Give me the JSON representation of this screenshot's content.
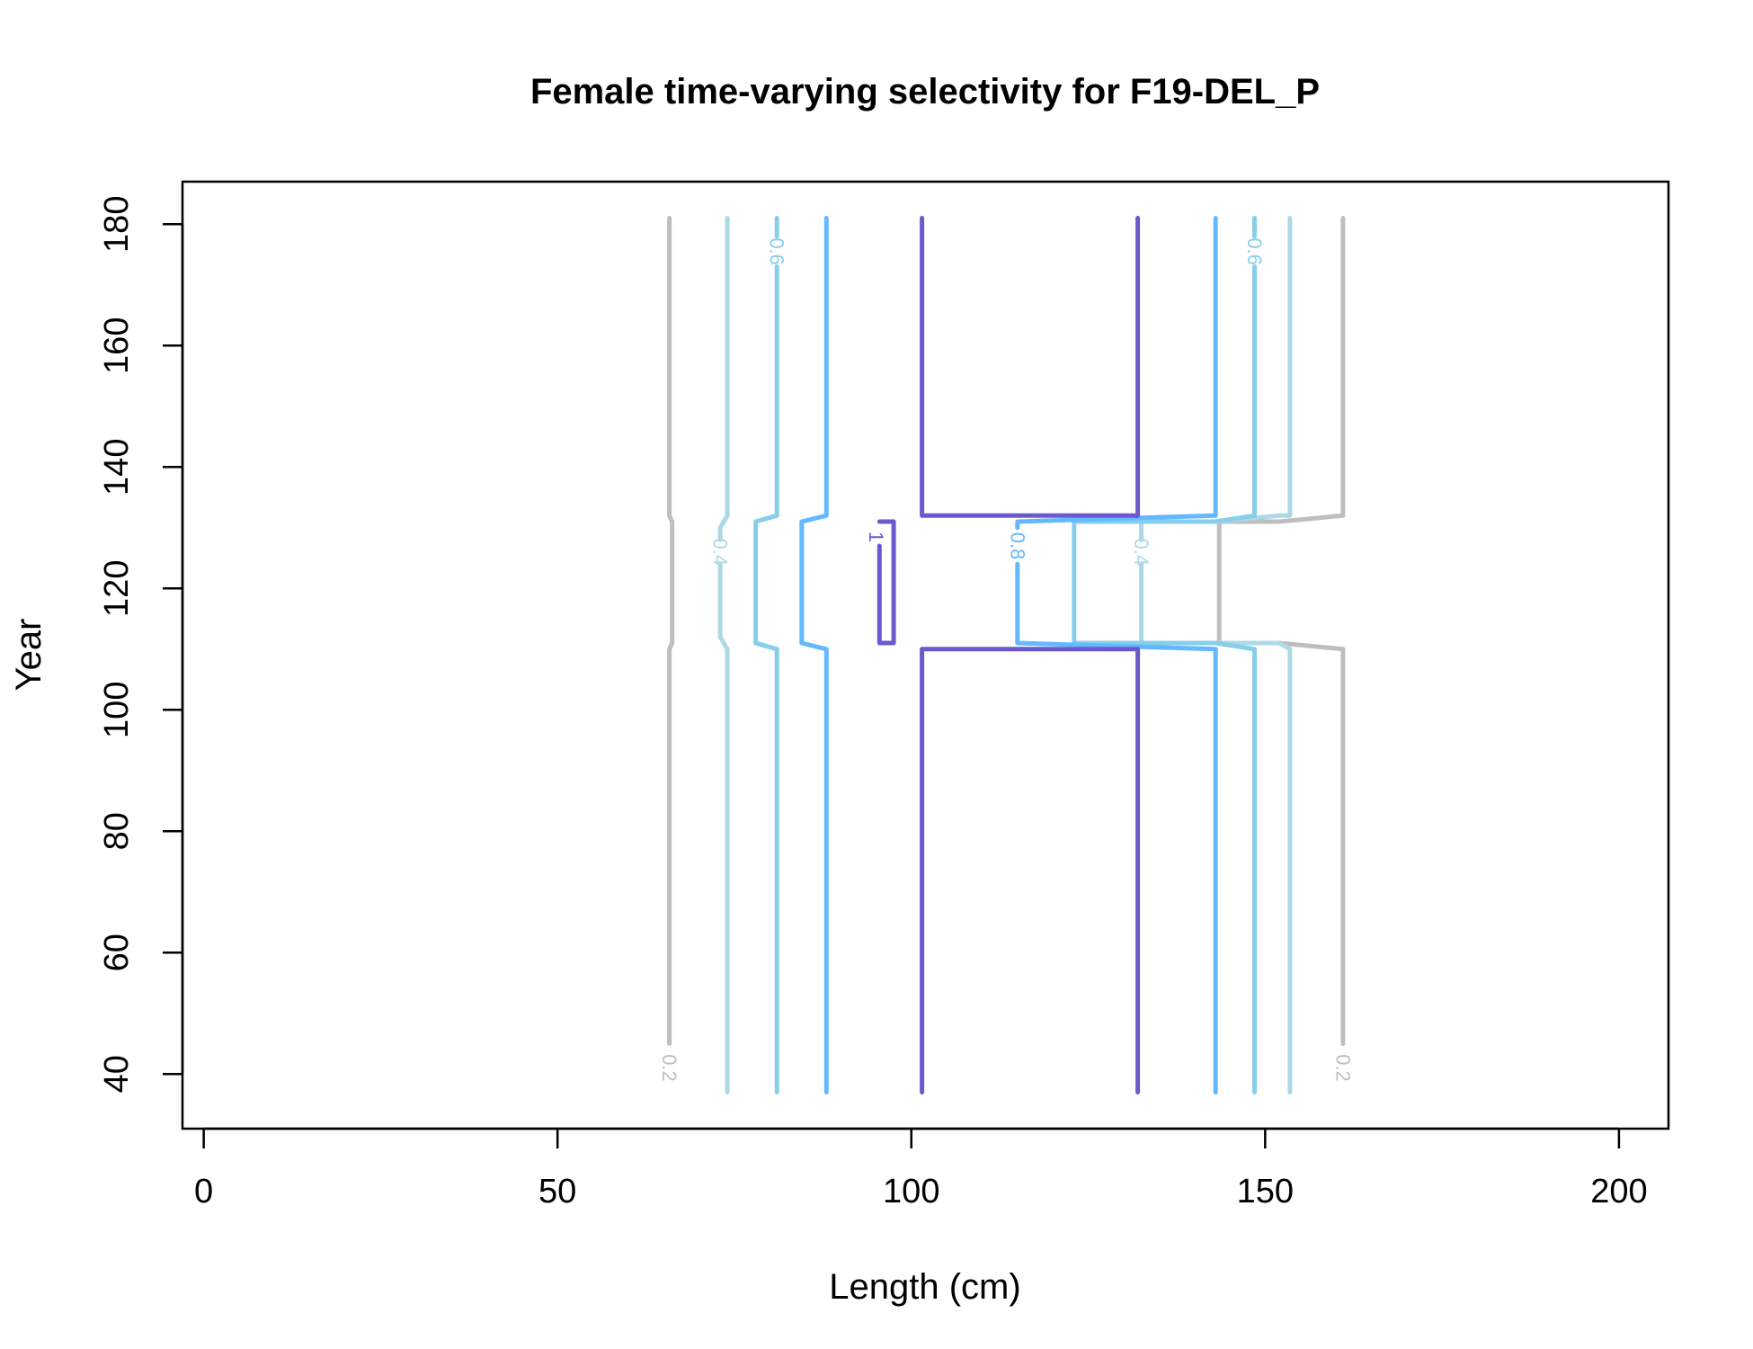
{
  "chart_data": {
    "type": "contour",
    "title": "Female time-varying selectivity for F19-DEL_P",
    "xlabel": "Length (cm)",
    "ylabel": "Year",
    "xlim": [
      -3,
      207
    ],
    "ylim": [
      31,
      187
    ],
    "xticks": [
      0,
      50,
      100,
      150,
      200
    ],
    "yticks": [
      40,
      60,
      80,
      100,
      120,
      140,
      160,
      180
    ],
    "grid": false,
    "levels": [
      {
        "level": "0.2",
        "color": "#bebebe",
        "lines": [
          {
            "points": [
              [
                65.8,
                45
              ],
              [
                65.8,
                110
              ],
              [
                66.2,
                111
              ],
              [
                66.2,
                131
              ],
              [
                65.8,
                132
              ],
              [
                65.8,
                181
              ]
            ],
            "label_at": [
              65.8,
              41
            ]
          },
          {
            "points": [
              [
                161,
                181
              ],
              [
                161,
                132
              ],
              [
                152,
                131
              ],
              [
                143.5,
                131
              ],
              [
                143.5,
                111
              ],
              [
                152,
                111
              ],
              [
                161,
                110
              ],
              [
                161,
                45
              ]
            ],
            "label_at": [
              161,
              41
            ]
          }
        ]
      },
      {
        "level": "0.4",
        "color": "#add8e6",
        "lines": [
          {
            "points": [
              [
                74,
                37
              ],
              [
                74,
                110
              ],
              [
                73,
                112
              ],
              [
                73,
                124
              ]
            ]
          },
          {
            "points": [
              [
                73,
                128
              ],
              [
                73,
                130
              ],
              [
                74,
                132
              ],
              [
                74,
                181
              ]
            ],
            "label_at": [
              73,
              126
            ]
          },
          {
            "points": [
              [
                132.5,
                124
              ],
              [
                132.5,
                111
              ],
              [
                143,
                111
              ],
              [
                152,
                111
              ],
              [
                153.5,
                110
              ],
              [
                153.5,
                37
              ]
            ]
          },
          {
            "points": [
              [
                132.5,
                128
              ],
              [
                132.5,
                131
              ],
              [
                143,
                131
              ],
              [
                152,
                132
              ],
              [
                153.5,
                132
              ],
              [
                153.5,
                181
              ]
            ],
            "label_at": [
              132.5,
              126
            ]
          }
        ]
      },
      {
        "level": "0.6",
        "color": "#87ceeb",
        "lines": [
          {
            "points": [
              [
                81,
                37
              ],
              [
                81,
                110
              ],
              [
                78,
                111
              ],
              [
                78,
                131
              ],
              [
                81,
                132
              ],
              [
                81,
                173
              ]
            ]
          },
          {
            "points": [
              [
                81,
                178
              ],
              [
                81,
                181
              ]
            ],
            "label_at": [
              81,
              175.5
            ]
          },
          {
            "points": [
              [
                148.5,
                37
              ],
              [
                148.5,
                110
              ],
              [
                143,
                111
              ],
              [
                123,
                111
              ],
              [
                123,
                131
              ],
              [
                143,
                131
              ],
              [
                148.5,
                132
              ],
              [
                148.5,
                173
              ]
            ]
          },
          {
            "points": [
              [
                148.5,
                178
              ],
              [
                148.5,
                181
              ]
            ],
            "label_at": [
              148.5,
              175.5
            ]
          }
        ]
      },
      {
        "level": "0.8",
        "color": "#63b8ff",
        "lines": [
          {
            "points": [
              [
                88,
                37
              ],
              [
                88,
                110
              ],
              [
                84.5,
                111
              ],
              [
                84.5,
                131
              ],
              [
                88,
                132
              ],
              [
                88,
                181
              ]
            ]
          },
          {
            "points": [
              [
                143,
                37
              ],
              [
                143,
                110
              ],
              [
                115,
                111
              ],
              [
                115,
                124
              ]
            ]
          },
          {
            "points": [
              [
                115,
                130
              ],
              [
                115,
                131
              ],
              [
                143,
                132
              ],
              [
                143,
                181
              ]
            ],
            "label_at": [
              115,
              127
            ]
          }
        ]
      },
      {
        "level": "1",
        "color": "#6a5acd",
        "lines": [
          {
            "points": [
              [
                101.5,
                37
              ],
              [
                101.5,
                110
              ],
              [
                132,
                110
              ],
              [
                132,
                37
              ]
            ]
          },
          {
            "points": [
              [
                101.5,
                181
              ],
              [
                101.5,
                132
              ],
              [
                132,
                132
              ],
              [
                132,
                181
              ]
            ]
          },
          {
            "points": [
              [
                95.5,
                127
              ],
              [
                95.5,
                111
              ],
              [
                97.5,
                111
              ],
              [
                97.5,
                131
              ],
              [
                95.5,
                131
              ]
            ],
            "label_at": [
              95,
              128.5
            ]
          }
        ]
      }
    ]
  }
}
